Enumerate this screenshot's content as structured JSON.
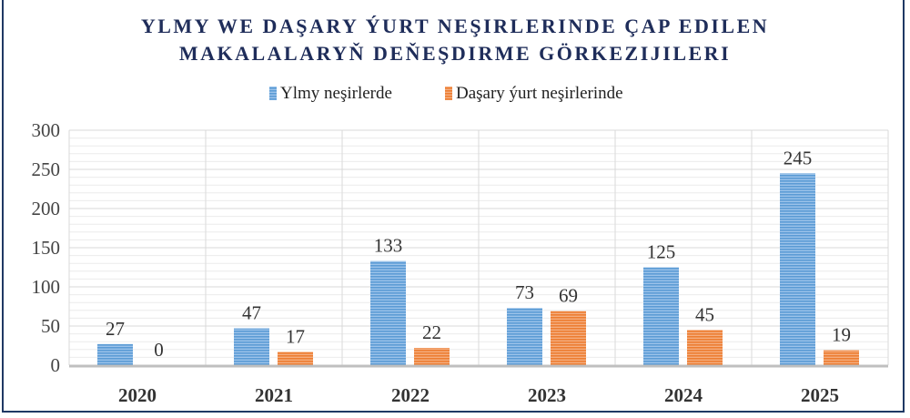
{
  "chart_data": {
    "type": "bar",
    "title_lines": [
      "YLMY WE DAŞARY ÝURT NEŞIRLERINDE ÇAP EDILEN",
      "MAKALALARYŇ DEŇEŞDIRME GÖRKEZIJILERI"
    ],
    "categories": [
      "2020",
      "2021",
      "2022",
      "2023",
      "2024",
      "2025"
    ],
    "series": [
      {
        "name": "Ylmy neşirlerde",
        "values": [
          27,
          47,
          133,
          73,
          125,
          245
        ],
        "color": "#5b9bd5"
      },
      {
        "name": "Daşary ýurt neşirlerinde",
        "values": [
          0,
          17,
          22,
          69,
          45,
          19
        ],
        "color": "#ed7d31"
      }
    ],
    "yticks": [
      "0",
      "50",
      "100",
      "150",
      "200",
      "250",
      "300"
    ],
    "ylim": [
      0,
      300
    ],
    "grid": true,
    "legend_position": "top"
  }
}
